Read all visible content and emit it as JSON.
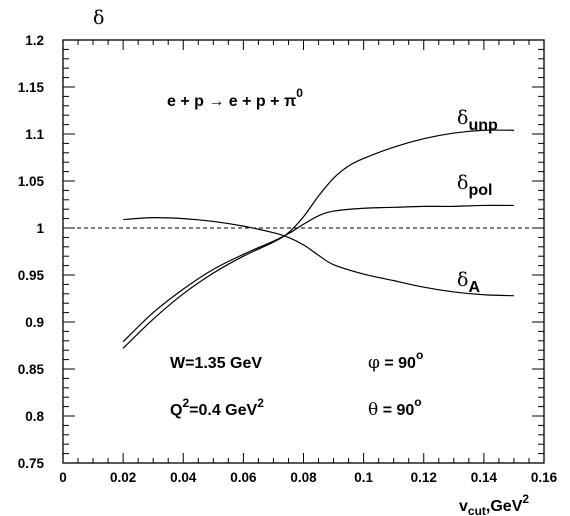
{
  "chart_data": {
    "type": "line",
    "xlabel": "v",
    "xlabel_sub": "cut",
    "xlabel_rest": ",GeV",
    "xlabel_sup": "2",
    "ylabel": "δ",
    "xlim": [
      0,
      0.16
    ],
    "ylim": [
      0.75,
      1.2
    ],
    "x_ticks": [
      0,
      0.02,
      0.04,
      0.06,
      0.08,
      0.1,
      0.12,
      0.14,
      0.16
    ],
    "x_tick_labels": [
      "0",
      "0.02",
      "0.04",
      "0.06",
      "0.08",
      "0.1",
      "0.12",
      "0.14",
      "0.16"
    ],
    "y_ticks": [
      0.75,
      0.8,
      0.85,
      0.9,
      0.95,
      1.0,
      1.05,
      1.1,
      1.15,
      1.2
    ],
    "y_tick_labels": [
      "0.75",
      "0.8",
      "0.85",
      "0.9",
      "0.95",
      "1",
      "1.05",
      "1.1",
      "1.15",
      "1.2"
    ],
    "reference_line": {
      "y": 1.0,
      "style": "dashed"
    },
    "series": [
      {
        "name": "δ_unp",
        "label_main": "δ",
        "label_sub": "unp",
        "x": [
          0.02,
          0.03,
          0.04,
          0.05,
          0.06,
          0.07,
          0.075,
          0.08,
          0.085,
          0.09,
          0.095,
          0.1,
          0.11,
          0.12,
          0.13,
          0.14,
          0.15
        ],
        "y": [
          0.872,
          0.903,
          0.93,
          0.952,
          0.97,
          0.985,
          0.995,
          1.012,
          1.034,
          1.053,
          1.066,
          1.074,
          1.086,
          1.095,
          1.101,
          1.104,
          1.104
        ]
      },
      {
        "name": "δ_pol",
        "label_main": "δ",
        "label_sub": "pol",
        "x": [
          0.02,
          0.03,
          0.04,
          0.05,
          0.06,
          0.07,
          0.075,
          0.08,
          0.085,
          0.09,
          0.1,
          0.11,
          0.12,
          0.13,
          0.14,
          0.15
        ],
        "y": [
          0.879,
          0.91,
          0.935,
          0.956,
          0.972,
          0.986,
          0.994,
          1.004,
          1.013,
          1.018,
          1.021,
          1.022,
          1.023,
          1.023,
          1.024,
          1.024
        ]
      },
      {
        "name": "δ_A",
        "label_main": "δ",
        "label_sub": "A",
        "x": [
          0.02,
          0.03,
          0.04,
          0.05,
          0.06,
          0.07,
          0.075,
          0.08,
          0.085,
          0.09,
          0.1,
          0.11,
          0.12,
          0.13,
          0.14,
          0.15
        ],
        "y": [
          1.009,
          1.011,
          1.01,
          1.007,
          1.002,
          0.995,
          0.99,
          0.982,
          0.971,
          0.961,
          0.951,
          0.944,
          0.937,
          0.932,
          0.929,
          0.928
        ]
      }
    ],
    "annotations": {
      "reaction": {
        "main": "e + p → e + p + π",
        "sup": "0"
      },
      "W": "W=1.35 GeV",
      "Q2": {
        "pre": "Q",
        "sup1": "2",
        "mid": "=0.4 GeV",
        "sup2": "2"
      },
      "phi": {
        "sym": "φ",
        "val": " =  90",
        "sup": "o"
      },
      "theta": {
        "sym": "θ",
        "val": " =  90",
        "sup": "o"
      }
    }
  }
}
